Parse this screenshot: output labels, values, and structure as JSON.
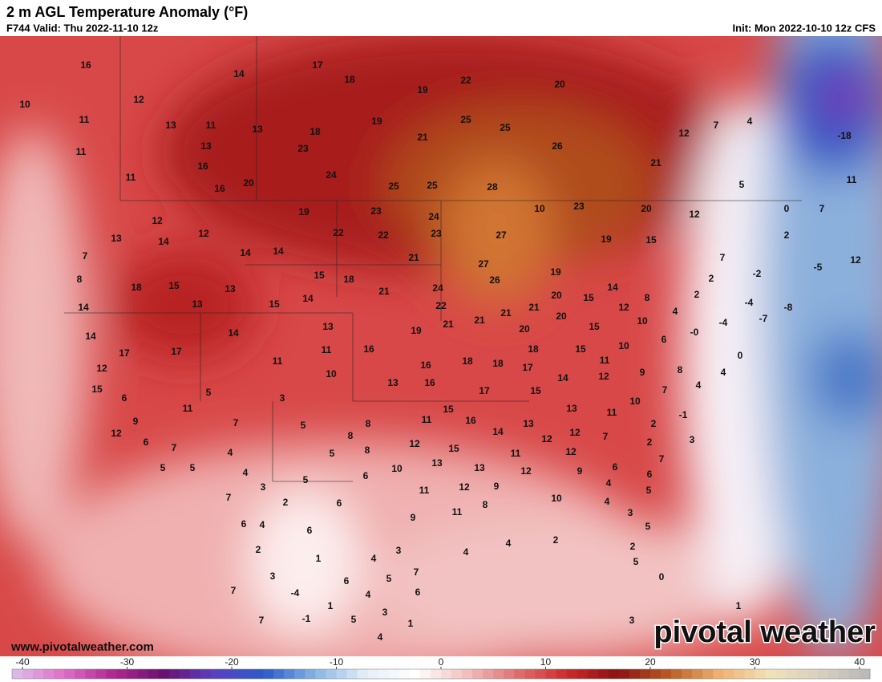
{
  "header": {
    "title": "2 m AGL Temperature Anomaly (°F)",
    "valid": "F744 Valid: Thu 2022-11-10 12z",
    "init": "Init: Mon 2022-10-10 12z CFS"
  },
  "map": {
    "labels": [
      16,
      14,
      17,
      18,
      22,
      20,
      10,
      12,
      19,
      11,
      13,
      11,
      13,
      18,
      19,
      25,
      25,
      7,
      4,
      -18,
      11,
      13,
      23,
      21,
      26,
      12,
      11,
      16,
      24,
      21,
      16,
      20,
      25,
      25,
      28,
      5,
      11,
      19,
      23,
      24,
      10,
      23,
      20,
      12,
      0,
      7,
      13,
      12,
      14,
      12,
      22,
      22,
      23,
      27,
      2,
      7,
      14,
      14,
      21,
      19,
      15,
      7,
      -5,
      12,
      8,
      18,
      15,
      15,
      18,
      27,
      26,
      19,
      2,
      -2,
      13,
      21,
      24,
      14,
      2,
      -4,
      14,
      13,
      15,
      14,
      22,
      20,
      15,
      8,
      -8,
      13,
      19,
      21,
      21,
      21,
      21,
      20,
      4,
      12,
      10,
      -7,
      -4,
      14,
      14,
      20,
      15,
      6,
      {
        "value": 0,
        "label": "-0"
      },
      17,
      17,
      11,
      16,
      18,
      15,
      10,
      0,
      11,
      16,
      18,
      18,
      17,
      11,
      12,
      10,
      13,
      16,
      14,
      12,
      9,
      8,
      4,
      15,
      6,
      5,
      3,
      17,
      15,
      7,
      4,
      11,
      15,
      13,
      11,
      10,
      -1,
      9,
      7,
      5,
      8,
      11,
      16,
      13,
      2,
      12,
      8,
      12,
      14,
      12,
      12,
      7,
      3,
      6,
      4,
      5,
      8,
      15,
      2,
      7,
      11,
      12,
      5,
      5,
      4,
      13,
      10,
      13,
      12,
      6,
      7,
      3,
      5,
      6,
      9,
      4,
      6,
      7,
      2,
      6,
      11,
      12,
      9,
      5,
      11,
      8,
      10,
      4,
      6,
      4,
      6,
      9,
      3,
      5,
      2,
      4,
      4,
      2,
      1,
      4,
      3,
      2,
      5,
      0,
      1,
      3,
      6,
      5,
      7,
      7,
      -4,
      4,
      6,
      1,
      3,
      7,
      -1,
      5,
      1,
      3,
      4
    ]
  },
  "colorbar": {
    "lim": [
      -41,
      41
    ],
    "ticks": [
      -40,
      -30,
      -20,
      -10,
      0,
      10,
      20,
      30,
      40
    ],
    "colors": [
      "#dcc0ec",
      "#e070c8",
      "#b02890",
      "#6a1070",
      "#5a40c0",
      "#2c5cc8",
      "#86b4e4",
      "#e4eef8",
      "#ffffff",
      "#f2c0c0",
      "#e07070",
      "#cc2a2a",
      "#8a1212",
      "#b85a22",
      "#eeb070",
      "#f2e2b8",
      "#d8d0c0",
      "#b8b8b8"
    ]
  },
  "footer": {
    "site": "www.pivotalweather.com",
    "brand": "pivotal weather"
  }
}
